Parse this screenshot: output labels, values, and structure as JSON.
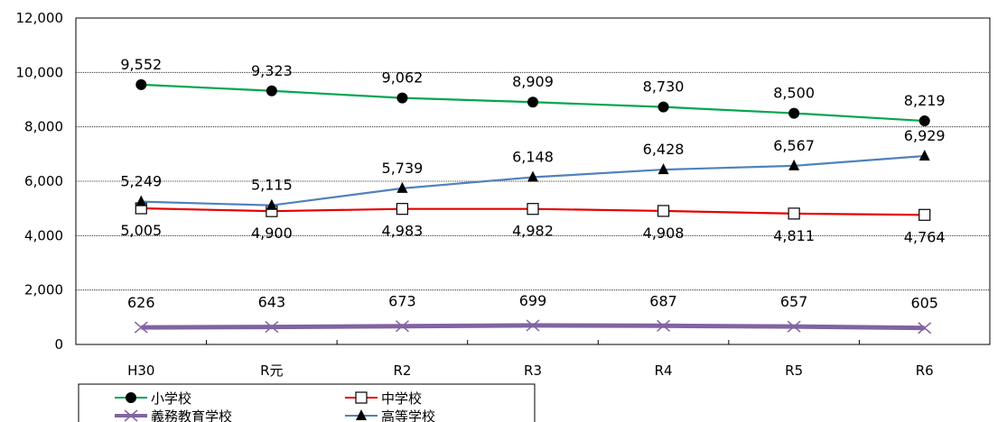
{
  "chart_data": {
    "type": "line",
    "categories": [
      "H30",
      "R元",
      "R2",
      "R3",
      "R4",
      "R5",
      "R6"
    ],
    "ylim": [
      0,
      12000
    ],
    "yticks": [
      0,
      2000,
      4000,
      6000,
      8000,
      10000,
      12000
    ],
    "ytick_labels": [
      "0",
      "2,000",
      "4,000",
      "6,000",
      "8,000",
      "10,000",
      "12,000"
    ],
    "grid": "horizontal dotted",
    "legend_position": "bottom-left",
    "series": [
      {
        "name": "小学校",
        "values": [
          9552,
          9323,
          9062,
          8909,
          8730,
          8500,
          8219
        ],
        "labels": [
          "9,552",
          "9,323",
          "9,062",
          "8,909",
          "8,730",
          "8,500",
          "8,219"
        ],
        "color": "#00a650",
        "marker": "filled-circle",
        "label_position": "above"
      },
      {
        "name": "中学校",
        "values": [
          5005,
          4900,
          4983,
          4982,
          4908,
          4811,
          4764
        ],
        "labels": [
          "5,005",
          "4,900",
          "4,983",
          "4,982",
          "4,908",
          "4,811",
          "4,764"
        ],
        "color": "#e60000",
        "marker": "open-square",
        "label_position": "below"
      },
      {
        "name": "義務教育学校",
        "values": [
          626,
          643,
          673,
          699,
          687,
          657,
          605
        ],
        "labels": [
          "626",
          "643",
          "673",
          "699",
          "687",
          "657",
          "605"
        ],
        "color": "#8064a2",
        "marker": "x",
        "label_position": "above"
      },
      {
        "name": "高等学校",
        "values": [
          5249,
          5115,
          5739,
          6148,
          6428,
          6567,
          6929
        ],
        "labels": [
          "5,249",
          "5,115",
          "5,739",
          "6,148",
          "6,428",
          "6,567",
          "6,929"
        ],
        "color": "#4f81bd",
        "marker": "filled-triangle",
        "label_position": "above"
      }
    ]
  }
}
